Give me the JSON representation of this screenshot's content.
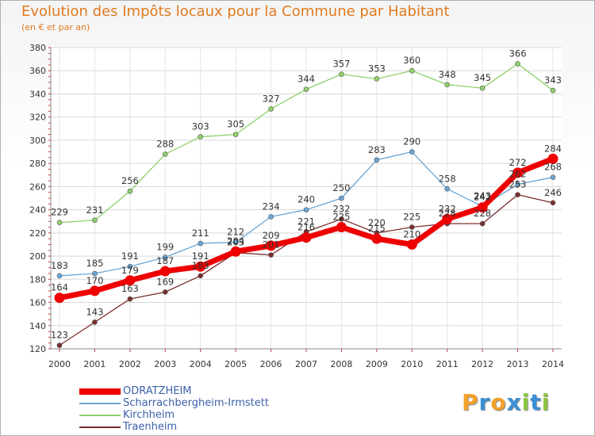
{
  "title": "Evolution des Impôts locaux pour la Commune par Habitant",
  "subtitle": "(en € et par an)",
  "logo": {
    "text": "Proxiti"
  },
  "chart_data": {
    "type": "line",
    "title": "Evolution des Impôts locaux pour la Commune par Habitant",
    "ylabel": "(en € et par an)",
    "xlabel": "",
    "x": [
      "2000",
      "2001",
      "2002",
      "2003",
      "2004",
      "2005",
      "2006",
      "2007",
      "2008",
      "2009",
      "2010",
      "2011",
      "2012",
      "2013",
      "2014"
    ],
    "ylim": [
      120,
      380
    ],
    "yticks": [
      120,
      140,
      160,
      180,
      200,
      220,
      240,
      260,
      280,
      300,
      320,
      340,
      360,
      380
    ],
    "legend_position": "bottom-left",
    "series": [
      {
        "name": "ODRATZHEIM",
        "color": "#ee0000",
        "values": [
          164,
          170,
          179,
          187,
          191,
          204,
          209,
          216,
          225,
          215,
          210,
          232,
          242,
          272,
          284
        ]
      },
      {
        "name": "Scharrachbergheim-Irmstett",
        "color": "#6aa6d6",
        "values": [
          183,
          185,
          191,
          199,
          211,
          212,
          234,
          240,
          250,
          283,
          290,
          258,
          243,
          262,
          268
        ]
      },
      {
        "name": "Kirchheim",
        "color": "#8fd16a",
        "values": [
          229,
          231,
          256,
          288,
          303,
          305,
          327,
          344,
          357,
          353,
          360,
          348,
          345,
          366,
          343
        ]
      },
      {
        "name": "Traenheim",
        "color": "#7a2c2c",
        "values": [
          123,
          143,
          163,
          169,
          183,
          203,
          201,
          221,
          232,
          220,
          225,
          228,
          228,
          253,
          246
        ]
      }
    ]
  }
}
